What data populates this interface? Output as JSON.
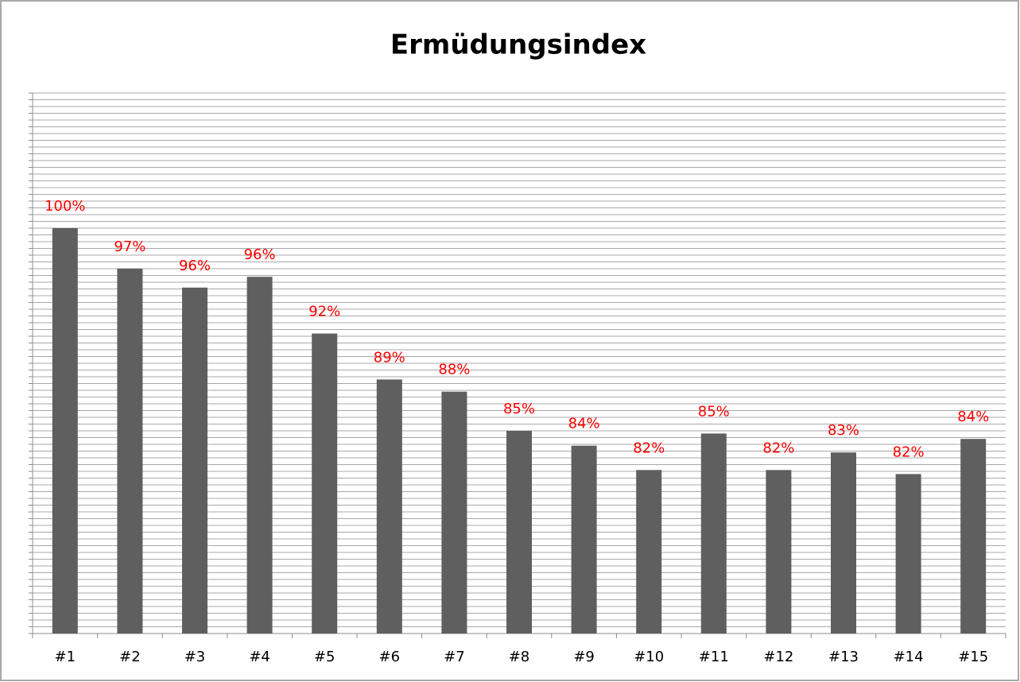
{
  "chart_data": {
    "type": "bar",
    "title": "Ermüdungsindex",
    "categories": [
      "#1",
      "#2",
      "#3",
      "#4",
      "#5",
      "#6",
      "#7",
      "#8",
      "#9",
      "#10",
      "#11",
      "#12",
      "#13",
      "#14",
      "#15"
    ],
    "values": [
      100,
      97,
      95.6,
      96.4,
      92.2,
      88.8,
      87.9,
      85,
      83.9,
      82.1,
      84.8,
      82.1,
      83.4,
      81.8,
      84.4
    ],
    "value_labels": [
      "100%",
      "97%",
      "96%",
      "96%",
      "92%",
      "89%",
      "88%",
      "85%",
      "84%",
      "82%",
      "85%",
      "82%",
      "83%",
      "82%",
      "84%"
    ],
    "color": "#5f5f5f",
    "label_color": "#ff0000",
    "ylim": [
      70,
      110
    ],
    "yticks": [
      70,
      70.5,
      71,
      71.5,
      72,
      72.5,
      73,
      73.5,
      74,
      74.5,
      75,
      75.5,
      76,
      76.5,
      77,
      77.5,
      78,
      78.5,
      79,
      79.5,
      80,
      80.5,
      81,
      81.5,
      82,
      82.5,
      83,
      83.5,
      84,
      84.5,
      85,
      85.5,
      86,
      86.5,
      87,
      87.5,
      88,
      88.5,
      89,
      89.5,
      90,
      90.5,
      91,
      91.5,
      92,
      92.5,
      93,
      93.5,
      94,
      94.5,
      95,
      95.5,
      96,
      96.5,
      97,
      97.5,
      98,
      98.5,
      99,
      99.5,
      100,
      100.5,
      101,
      101.5,
      102,
      102.5,
      103,
      103.5,
      104,
      104.5,
      105,
      105.5,
      106,
      106.5,
      107,
      107.5,
      108,
      108.5,
      109,
      109.5,
      110
    ],
    "grid": true
  }
}
